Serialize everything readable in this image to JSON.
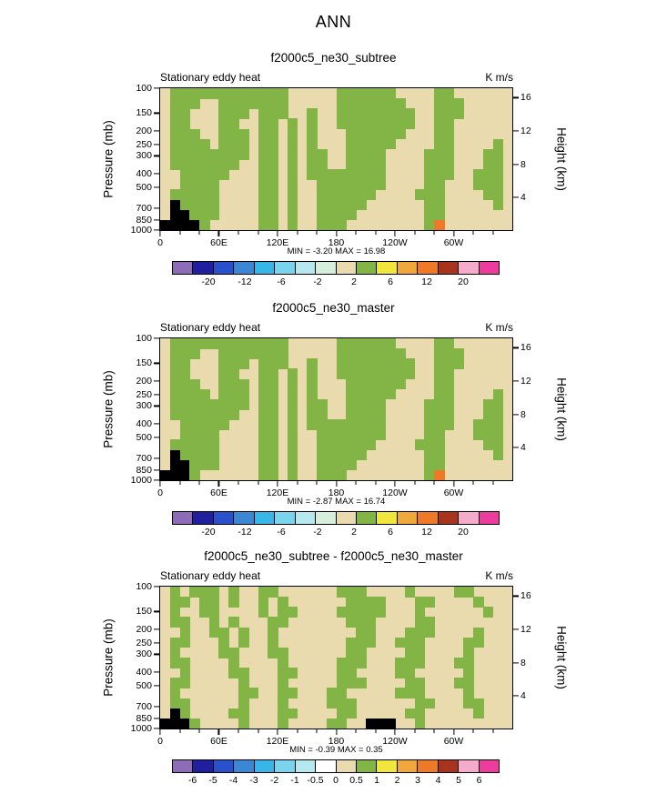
{
  "page_title": "ANN",
  "chart_data": [
    {
      "type": "filled-contour",
      "title": "f2000c5_ne30_subtree",
      "field_label": "Stationary eddy heat",
      "units_label": "K m/s",
      "left_axis_title": "Pressure (mb)",
      "right_axis_title": "Height (km)",
      "pressure_ticks": [
        100,
        150,
        200,
        250,
        300,
        400,
        500,
        700,
        850,
        1000
      ],
      "height_ticks": [
        16,
        12,
        8,
        4
      ],
      "lon_ticks": [
        {
          "deg": 0,
          "label": "0"
        },
        {
          "deg": 60,
          "label": "60E"
        },
        {
          "deg": 120,
          "label": "120E"
        },
        {
          "deg": 180,
          "label": "180"
        },
        {
          "deg": 240,
          "label": "120W"
        },
        {
          "deg": 300,
          "label": "60W"
        }
      ],
      "min": -3.2,
      "max": 16.98,
      "stats": "MIN =  -3.20  MAX =  16.98",
      "colorbar": {
        "labels": [
          "-20",
          "-12",
          "-6",
          "-2",
          "2",
          "6",
          "12",
          "20"
        ],
        "colors": [
          "#8f6cb8",
          "#20209e",
          "#2a50cc",
          "#3c86d6",
          "#38b6e8",
          "#7ad4ee",
          "#b6e8f0",
          "#d8eedd",
          "#e9dbae",
          "#82b446",
          "#f0e63e",
          "#f0a83c",
          "#ee7a28",
          "#a8341e",
          "#f4acca",
          "#ee3c9e"
        ]
      },
      "grid": {
        "background": "#e9dbae",
        "colors": {
          "G": "#82b446",
          "K": "#000000",
          "O": "#ee7a28"
        },
        "legend": {
          ".": "band -2..2",
          "G": "band 2..6",
          "K": "topography/below min",
          "O": "band 6..12"
        },
        "rows": [
          ".GGGGGGGGGGGG.....GGGGGG....GG......",
          ".GGG..GGGGGGG.....GGGGGGG...GGG.....",
          ".GG...GGG.GGG..G..GGGGGGGG..GGG.....",
          ".GG...GG..GG.G.G..GGGGGGGG..GG......",
          ".GGG..GGG.GG.G.G...GGGGGG...GG......",
          ".GGGG.GGG.GG.G.G...GGGGG....GG....G.",
          ".GGGGGGGG.GG.G.GG..GGGG....GGG...GG.",
          ".GGGGGGG..GG.G.GG..GGGG....GGG...GG.",
          "..GGGGG...GG.G.GGGGGGGG....GGG..GGG.",
          "..GGGG....GG.G..GGGGGGG....GG...GGG.",
          ".GGGGG....GG.G..GGGGGG....GGG....GG.",
          ".KGGGG....GG.G..GGGGG......GG.....G.",
          ".KKGGG....GG.G..GGGG.......GG.......",
          "KKKKG.....GG.G..GGG........GO......."
        ]
      }
    },
    {
      "type": "filled-contour",
      "title": "f2000c5_ne30_master",
      "field_label": "Stationary eddy heat",
      "units_label": "K m/s",
      "left_axis_title": "Pressure (mb)",
      "right_axis_title": "Height (km)",
      "pressure_ticks": [
        100,
        150,
        200,
        250,
        300,
        400,
        500,
        700,
        850,
        1000
      ],
      "height_ticks": [
        16,
        12,
        8,
        4
      ],
      "lon_ticks": [
        {
          "deg": 0,
          "label": "0"
        },
        {
          "deg": 60,
          "label": "60E"
        },
        {
          "deg": 120,
          "label": "120E"
        },
        {
          "deg": 180,
          "label": "180"
        },
        {
          "deg": 240,
          "label": "120W"
        },
        {
          "deg": 300,
          "label": "60W"
        }
      ],
      "min": -2.87,
      "max": 16.74,
      "stats": "MIN =  -2.87  MAX =  16.74",
      "colorbar": {
        "labels": [
          "-20",
          "-12",
          "-6",
          "-2",
          "2",
          "6",
          "12",
          "20"
        ],
        "colors": [
          "#8f6cb8",
          "#20209e",
          "#2a50cc",
          "#3c86d6",
          "#38b6e8",
          "#7ad4ee",
          "#b6e8f0",
          "#d8eedd",
          "#e9dbae",
          "#82b446",
          "#f0e63e",
          "#f0a83c",
          "#ee7a28",
          "#a8341e",
          "#f4acca",
          "#ee3c9e"
        ]
      },
      "grid": {
        "background": "#e9dbae",
        "colors": {
          "G": "#82b446",
          "K": "#000000",
          "O": "#ee7a28"
        },
        "legend": {
          ".": "band -2..2",
          "G": "band 2..6",
          "K": "topography/below min",
          "O": "band 6..12"
        },
        "rows": [
          ".GGGGGGGGGGGG.....GGGGGG....GG......",
          ".GGG..GGGGGGG.....GGGGGGG...GGG.....",
          ".GG...GGG.GGG..G..GGGGGGGG..GGG.....",
          ".GG...GG..GG.G.G..GGGGGGGG..GG......",
          ".GGG..GGG.GG.G.G...GGGGGG...GG......",
          ".GGGG.GGG.GG.G.G...GGGGG....GG....G.",
          ".GGGGGGGG.GG.G.GG..GGGG....GGG...GG.",
          ".GGGGGGG..GG.G.GG..GGGG....GGG...GG.",
          "..GGGGG...GG.G.GGGGGGGG....GGG..GGG.",
          "..GGGG....GG.G..GGGGGGG....GG...GGG.",
          ".GGGGG....GG.G..GGGGGG....GGG....GG.",
          ".KGGGG....GG.G..GGGGG......GG.....G.",
          ".KKGGG....GG.G..GGGG.......GG.......",
          "KKKG......GG.G..GGG........GO......."
        ]
      }
    },
    {
      "type": "filled-contour-difference",
      "title": "f2000c5_ne30_subtree - f2000c5_ne30_master",
      "field_label": "Stationary eddy heat",
      "units_label": "K m/s",
      "left_axis_title": "Pressure (mb)",
      "right_axis_title": "Height (km)",
      "pressure_ticks": [
        100,
        150,
        200,
        250,
        300,
        400,
        500,
        700,
        850,
        1000
      ],
      "height_ticks": [
        16,
        12,
        8,
        4
      ],
      "lon_ticks": [
        {
          "deg": 0,
          "label": "0"
        },
        {
          "deg": 60,
          "label": "60E"
        },
        {
          "deg": 120,
          "label": "120E"
        },
        {
          "deg": 180,
          "label": "180"
        },
        {
          "deg": 240,
          "label": "120W"
        },
        {
          "deg": 300,
          "label": "60W"
        }
      ],
      "min": -0.39,
      "max": 0.35,
      "stats": "MIN =  -0.39  MAX =   0.35",
      "colorbar": {
        "labels": [
          "-6",
          "-5",
          "-4",
          "-3",
          "-2",
          "-1",
          "-0.5",
          "0",
          "0.5",
          "1",
          "2",
          "3",
          "4",
          "5",
          "6"
        ],
        "colors": [
          "#8f6cb8",
          "#20209e",
          "#2a50cc",
          "#3c86d6",
          "#38b6e8",
          "#7ad4ee",
          "#b6e8f0",
          "#ffffff",
          "#e9dbae",
          "#82b446",
          "#f0e63e",
          "#f0a83c",
          "#ee7a28",
          "#a8341e",
          "#f4acca",
          "#ee3c9e"
        ]
      },
      "grid": {
        "background": "#e9dbae",
        "colors": {
          "G": "#82b446",
          "K": "#000000",
          "O": "#ee7a28"
        },
        "legend": {
          ".": "band -0.5..0.5 (approx)",
          "G": "band 0.5..1 (approx)",
          "K": "topography/below min",
          "O": "positive extreme"
        },
        "rows": [
          ".G.GGG.G..GG......GGG....G....GG....",
          ".GG.GG.G..G.G......GGGG...GG....G...",
          ".G..GG....G.GG....GGGGG...G......G..",
          ".GG..G.G...GG......GGG....GG........",
          "..G..GG.G..G........GG...GGG....G...",
          ".GG...G.G..G.......GGG..GGG....GG...",
          ".G....GG...GG......GG....GG....G....",
          ".GG....G....G.....GGG...GGG...GG....",
          "..G....GG...GG....GG....GG.....G....",
          ".GG.....G...G.....GGG....GG...GG....",
          ".G......GG..GG...GG.....GGG....G....",
          ".GG.....G...G....GGG......GG...GG...",
          ".KG....GG...GG....GG.....GG.....G...",
          "KKKG....G...G....GG..KKK..G........."
        ]
      }
    }
  ]
}
